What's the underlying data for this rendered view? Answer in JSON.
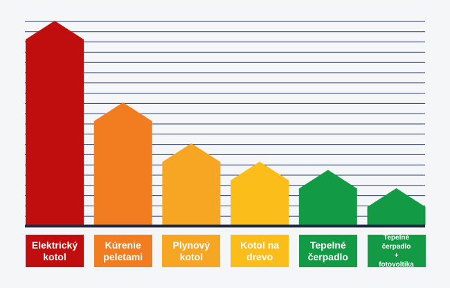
{
  "chart_data": {
    "type": "bar",
    "title": "",
    "xlabel": "",
    "ylabel": "",
    "grid": true,
    "ylim": [
      0,
      100
    ],
    "categories": [
      "Elektrický\nkotol",
      "Kúrenie\npeletami",
      "Plynový\nkotol",
      "Kotol na\ndrevo",
      "Tepelné\nčerpadlo",
      "Tepelné čerpadlo\n+\nfotovoltika"
    ],
    "values": [
      100,
      60,
      40,
      31,
      27,
      18
    ],
    "colors": [
      "#c00d0d",
      "#f27c20",
      "#f6a623",
      "#fbbd1a",
      "#129a45",
      "#129a45"
    ]
  }
}
